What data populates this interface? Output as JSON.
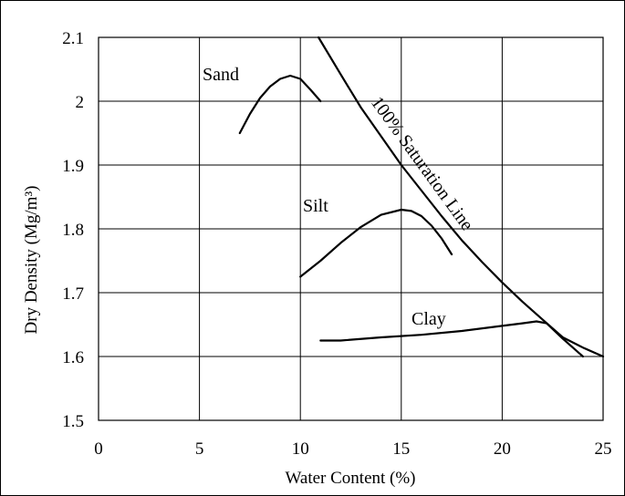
{
  "chart_data": {
    "type": "line",
    "title": "",
    "xlabel": "Water Content  (%)",
    "ylabel": "Dry Density  (Mg/m³)",
    "xlim": [
      0,
      25
    ],
    "ylim": [
      1.5,
      2.1
    ],
    "x_ticks": [
      "0",
      "5",
      "10",
      "15",
      "20",
      "25"
    ],
    "y_ticks": [
      "1.5",
      "1.6",
      "1.7",
      "1.8",
      "1.9",
      "2",
      "2.1"
    ],
    "grid": true,
    "legend": "none",
    "series": [
      {
        "name": "Sand",
        "points": [
          [
            7.0,
            1.95
          ],
          [
            7.5,
            1.98
          ],
          [
            8.0,
            2.005
          ],
          [
            8.5,
            2.023
          ],
          [
            9.0,
            2.035
          ],
          [
            9.5,
            2.04
          ],
          [
            10.0,
            2.035
          ],
          [
            10.5,
            2.018
          ],
          [
            11.0,
            2.0
          ]
        ]
      },
      {
        "name": "Silt",
        "points": [
          [
            10.0,
            1.725
          ],
          [
            11.0,
            1.75
          ],
          [
            12.0,
            1.778
          ],
          [
            13.0,
            1.803
          ],
          [
            14.0,
            1.822
          ],
          [
            15.0,
            1.83
          ],
          [
            15.5,
            1.828
          ],
          [
            16.0,
            1.82
          ],
          [
            16.5,
            1.805
          ],
          [
            17.0,
            1.785
          ],
          [
            17.5,
            1.76
          ]
        ]
      },
      {
        "name": "Clay",
        "points": [
          [
            11.0,
            1.625
          ],
          [
            12.0,
            1.625
          ],
          [
            14.0,
            1.63
          ],
          [
            16.0,
            1.634
          ],
          [
            18.0,
            1.64
          ],
          [
            20.0,
            1.648
          ],
          [
            21.0,
            1.652
          ],
          [
            21.7,
            1.655
          ],
          [
            22.2,
            1.652
          ],
          [
            23.0,
            1.628
          ],
          [
            24.0,
            1.6
          ]
        ]
      },
      {
        "name": "100% Saturation Line",
        "points": [
          [
            10.9,
            2.1
          ],
          [
            12.0,
            2.042
          ],
          [
            13.0,
            1.99
          ],
          [
            14.0,
            1.945
          ],
          [
            15.0,
            1.9
          ],
          [
            16.0,
            1.86
          ],
          [
            17.0,
            1.82
          ],
          [
            18.0,
            1.782
          ],
          [
            19.0,
            1.748
          ],
          [
            20.0,
            1.716
          ],
          [
            21.0,
            1.686
          ],
          [
            22.0,
            1.658
          ],
          [
            23.0,
            1.63
          ],
          [
            24.0,
            1.614
          ],
          [
            25.0,
            1.6
          ]
        ]
      }
    ]
  }
}
